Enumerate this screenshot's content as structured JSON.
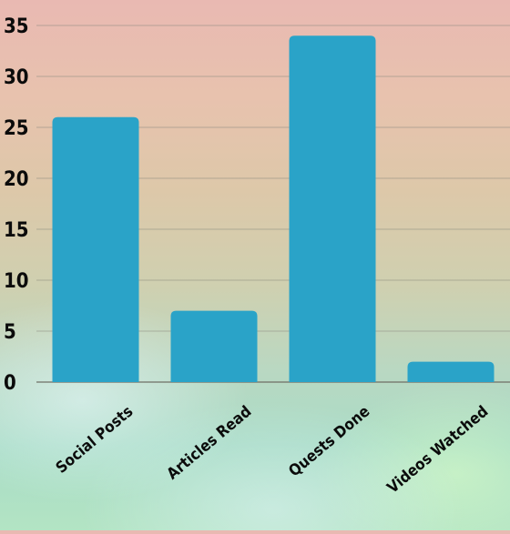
{
  "chart_data": {
    "type": "bar",
    "title": "",
    "xlabel": "",
    "ylabel": "",
    "categories": [
      "Social Posts",
      "Articles Read",
      "Quests Done",
      "Videos Watched"
    ],
    "values": [
      26,
      7,
      34,
      2
    ],
    "ylim": [
      0,
      35
    ],
    "yticks": [
      0,
      5,
      10,
      15,
      20,
      25,
      30,
      35
    ],
    "grid": true,
    "legend": "none",
    "bar_color": "#2aa3c8"
  }
}
